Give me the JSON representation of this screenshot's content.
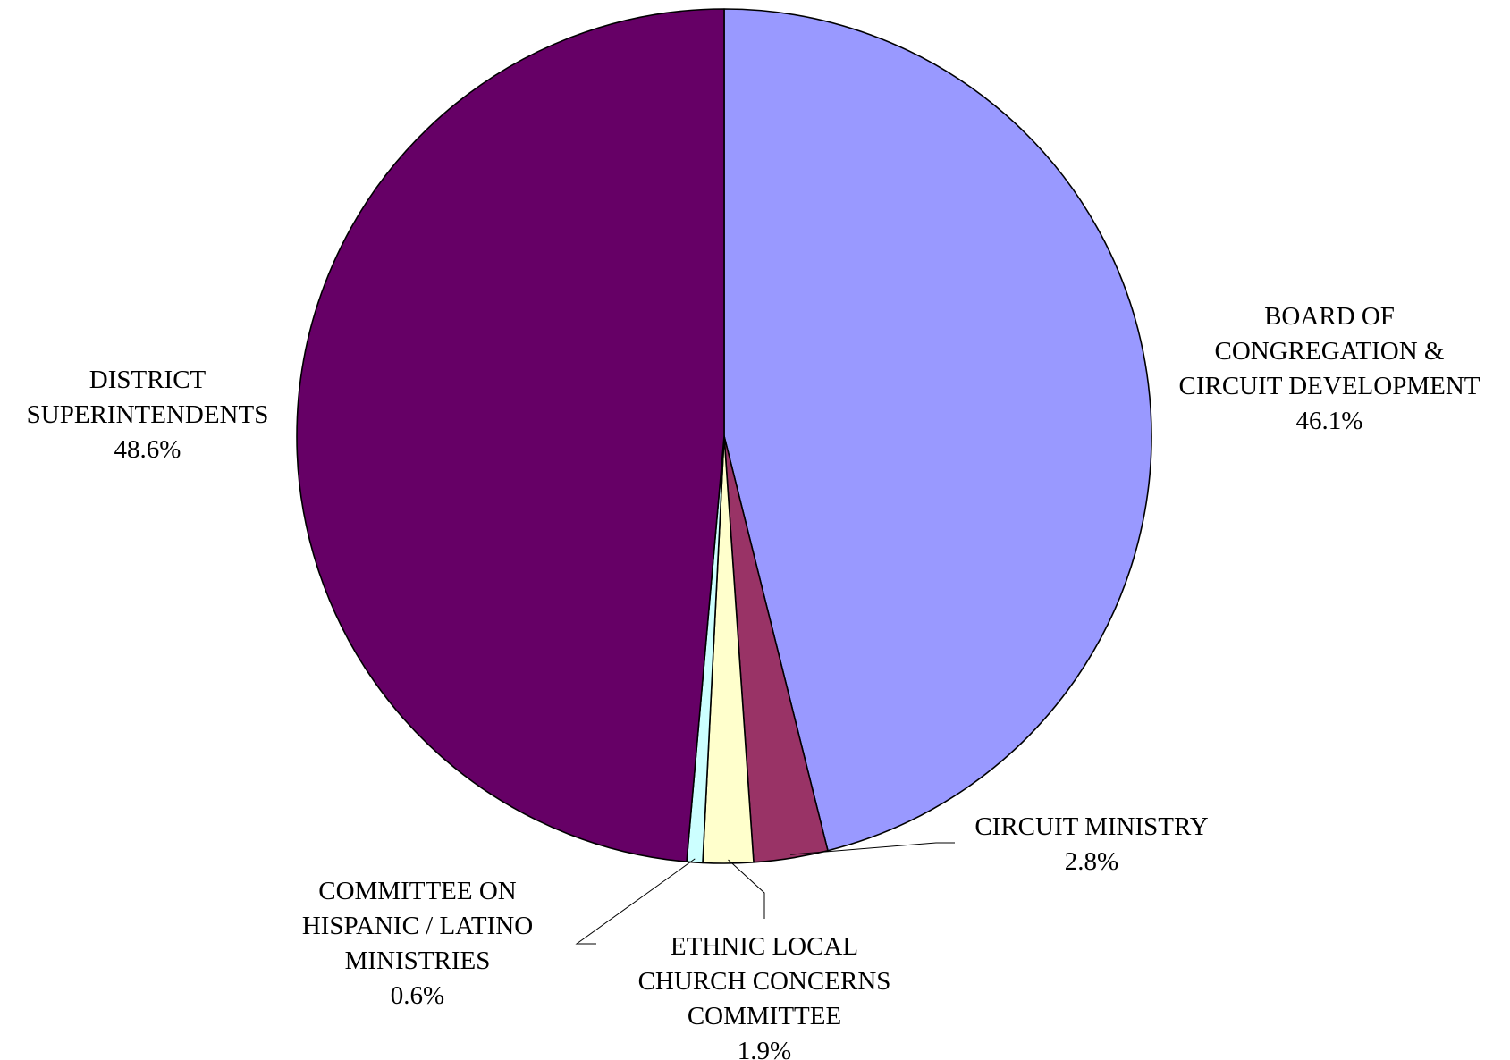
{
  "chart_data": {
    "type": "pie",
    "title": "",
    "start_angle_deg": 0,
    "direction": "clockwise",
    "legend": "none",
    "slices": [
      {
        "label": "BOARD OF CONGREGATION & CIRCUIT DEVELOPMENT",
        "label_lines": [
          "BOARD OF",
          "CONGREGATION &",
          "CIRCUIT DEVELOPMENT"
        ],
        "value": 46.1,
        "value_label": "46.1%",
        "color": "#9999ff"
      },
      {
        "label": "CIRCUIT MINISTRY",
        "label_lines": [
          "CIRCUIT MINISTRY"
        ],
        "value": 2.8,
        "value_label": "2.8%",
        "color": "#993366"
      },
      {
        "label": "ETHNIC LOCAL CHURCH CONCERNS COMMITTEE",
        "label_lines": [
          "ETHNIC LOCAL",
          "CHURCH CONCERNS",
          "COMMITTEE"
        ],
        "value": 1.9,
        "value_label": "1.9%",
        "color": "#ffffcc"
      },
      {
        "label": "COMMITTEE ON HISPANIC / LATINO MINISTRIES",
        "label_lines": [
          "COMMITTEE ON",
          "HISPANIC / LATINO",
          "MINISTRIES"
        ],
        "value": 0.6,
        "value_label": "0.6%",
        "color": "#ccffff"
      },
      {
        "label": "DISTRICT SUPERINTENDENTS",
        "label_lines": [
          "DISTRICT",
          "SUPERINTENDENTS"
        ],
        "value": 48.6,
        "value_label": "48.6%",
        "color": "#660066"
      }
    ]
  }
}
